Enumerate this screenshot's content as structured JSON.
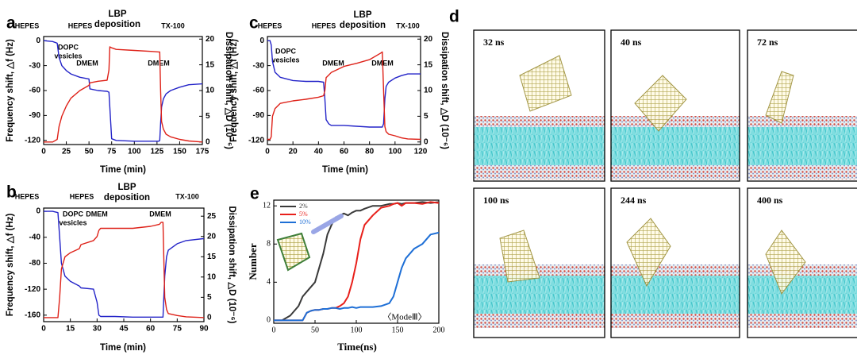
{
  "chart_data": [
    {
      "type": "line",
      "panel_label": "a",
      "xlabel": "Time (min)",
      "ylabel": "Frequency shift, △f (Hz)",
      "y2label": "Dissipation shift, △D (10⁻⁶)",
      "xlim": [
        0,
        175
      ],
      "xticks": [
        0,
        25,
        50,
        75,
        100,
        125,
        150,
        175
      ],
      "ylim": [
        -125,
        5
      ],
      "yticks": [
        0,
        -30,
        -60,
        -90,
        -120
      ],
      "y2lim": [
        -0.5,
        20.5
      ],
      "y2ticks": [
        0,
        5,
        10,
        15,
        20
      ],
      "annotations": [
        "HEPES",
        "HEPES",
        "LBP",
        "deposition",
        "TX-100",
        "DOPC",
        "vesicles",
        "DMEM",
        "DMEM"
      ],
      "x": [
        0,
        10,
        15,
        17,
        20,
        25,
        30,
        40,
        50,
        51,
        60,
        70,
        72,
        73,
        75,
        80,
        100,
        120,
        127,
        128,
        129,
        130,
        132,
        135,
        140,
        150,
        160,
        175
      ],
      "series": [
        {
          "color": "#2323c8",
          "values": [
            0,
            -1,
            -3,
            -20,
            -30,
            -36,
            -40,
            -44,
            -46,
            -58,
            -60,
            -61,
            -62,
            -80,
            -118,
            -120,
            -121,
            -121,
            -121,
            -120,
            -100,
            -80,
            -70,
            -64,
            -60,
            -56,
            -53,
            -52
          ]
        },
        {
          "color": "#de2118",
          "axis": "y2",
          "values": [
            0,
            0,
            0.5,
            3,
            5,
            7,
            8.5,
            10,
            11,
            11.5,
            11.8,
            12,
            14,
            18.5,
            18.3,
            18,
            17.8,
            17.6,
            17.5,
            17.5,
            10,
            4,
            2.5,
            1.5,
            1,
            0.5,
            0.2,
            0
          ]
        }
      ]
    },
    {
      "type": "line",
      "panel_label": "b",
      "xlabel": "Time (min)",
      "ylabel": "Frequency shift, △f (Hz)",
      "y2label": "Dissipation shift, △D (10⁻⁶)",
      "xlim": [
        0,
        90
      ],
      "xticks": [
        0,
        15,
        30,
        45,
        60,
        75,
        90
      ],
      "ylim": [
        -170,
        5
      ],
      "yticks": [
        -160,
        -120,
        -80,
        -40,
        0
      ],
      "y2lim": [
        -1,
        27
      ],
      "y2ticks": [
        0,
        5,
        10,
        15,
        20,
        25
      ],
      "annotations": [
        "HEPES",
        "HEPES",
        "LBP",
        "deposition",
        "TX-100",
        "DOPC",
        "vesicles",
        "DMEM",
        "DMEM"
      ],
      "x": [
        0,
        5,
        8,
        9,
        10,
        12,
        15,
        20,
        21,
        28,
        30,
        31,
        32,
        40,
        50,
        60,
        65,
        66,
        67,
        68,
        69,
        70,
        75,
        80,
        90
      ],
      "series": [
        {
          "color": "#2323c8",
          "values": [
            0,
            0,
            -2,
            -40,
            -80,
            -100,
            -108,
            -115,
            -118,
            -120,
            -140,
            -160,
            -162,
            -162,
            -163,
            -163,
            -163,
            -163,
            -163,
            -100,
            -70,
            -60,
            -50,
            -45,
            -42
          ]
        },
        {
          "color": "#de2118",
          "axis": "y2",
          "values": [
            0,
            0,
            0,
            5,
            12,
            15,
            16,
            17,
            18,
            19,
            20,
            21.5,
            22,
            22,
            22,
            22.5,
            23,
            23.5,
            23.5,
            5,
            2,
            1,
            0.5,
            0.2,
            0
          ]
        }
      ]
    },
    {
      "type": "line",
      "panel_label": "c",
      "xlabel": "Time (min)",
      "ylabel": "Frequency shift, △f (Hz)",
      "y2label": "Dissipation shift, △D (10⁻⁶)",
      "xlim": [
        0,
        120
      ],
      "xticks": [
        0,
        20,
        40,
        60,
        80,
        100,
        120
      ],
      "ylim": [
        -125,
        5
      ],
      "yticks": [
        0,
        -30,
        -60,
        -90,
        -120
      ],
      "y2lim": [
        -0.5,
        20.5
      ],
      "y2ticks": [
        0,
        5,
        10,
        15,
        20
      ],
      "annotations": [
        "HEPES",
        "HEPES",
        "LBP",
        "deposition",
        "TX-100",
        "DOPC",
        "vesicles",
        "DMEM",
        "DMEM"
      ],
      "x": [
        0,
        2,
        3,
        4,
        6,
        10,
        20,
        30,
        40,
        44,
        45,
        46,
        48,
        50,
        60,
        70,
        80,
        89,
        90,
        91,
        92,
        93,
        95,
        100,
        105,
        110,
        120
      ],
      "series": [
        {
          "color": "#2323c8",
          "values": [
            0,
            0,
            -5,
            -25,
            -38,
            -44,
            -48,
            -49,
            -49,
            -50,
            -70,
            -95,
            -100,
            -102,
            -102,
            -103,
            -104,
            -104,
            -104,
            -100,
            -70,
            -55,
            -50,
            -45,
            -42,
            -40,
            -40
          ]
        },
        {
          "color": "#de2118",
          "axis": "y2",
          "values": [
            0.5,
            0.5,
            1,
            5,
            6.5,
            7.5,
            8,
            8.3,
            8.7,
            9,
            10,
            12.5,
            13,
            13.5,
            14.7,
            15.3,
            16,
            17.3,
            17.5,
            10,
            3,
            2,
            1.5,
            1.2,
            0.8,
            0.6,
            0.5
          ]
        }
      ]
    },
    {
      "type": "line",
      "panel_label": "e",
      "xlabel": "Time(ns)",
      "ylabel": "Number",
      "xlim": [
        0,
        200
      ],
      "xticks": [
        0,
        50,
        100,
        150,
        200
      ],
      "ylim": [
        -0.3,
        12.6
      ],
      "yticks": [
        0,
        4,
        8,
        12
      ],
      "annotations": [
        "〈ModeⅢ〉"
      ],
      "x": [
        0,
        10,
        20,
        30,
        35,
        40,
        45,
        50,
        55,
        60,
        65,
        70,
        75,
        80,
        85,
        90,
        95,
        100,
        105,
        110,
        120,
        130,
        140,
        145,
        150,
        155,
        160,
        170,
        180,
        190,
        200
      ],
      "series": [
        {
          "name": "2%",
          "color": "#3a3a3a",
          "values": [
            0,
            0,
            0.5,
            1.5,
            2.5,
            3,
            3.5,
            4,
            5.5,
            7,
            9,
            10,
            10.8,
            11,
            11.2,
            11,
            11.3,
            11.5,
            11.5,
            11.7,
            12,
            12,
            12.2,
            12.2,
            12.3,
            12.2,
            12.3,
            12.3,
            12.4,
            12.3,
            12.4
          ]
        },
        {
          "name": "5%",
          "color": "#e8201b",
          "values": [
            0,
            0,
            0,
            0,
            0,
            0.8,
            1,
            1.1,
            1.1,
            1.2,
            1.2,
            1.3,
            1.3,
            1.5,
            1.8,
            2.5,
            4,
            6,
            8.5,
            10,
            11,
            11.8,
            12,
            12.2,
            12.3,
            12,
            12.3,
            12.3,
            12.2,
            12.4,
            12.3
          ]
        },
        {
          "name": "10%",
          "color": "#1e6fd6",
          "values": [
            0,
            0,
            0,
            0,
            0,
            0.8,
            1,
            1.1,
            1.1,
            1.2,
            1.2,
            1.3,
            1.3,
            1.2,
            1.3,
            1.3,
            1.4,
            1.3,
            1.4,
            1.4,
            1.4,
            1.5,
            1.8,
            2.5,
            4,
            5.5,
            6.5,
            7.5,
            8,
            9,
            9.2
          ]
        }
      ]
    }
  ],
  "panel_d": {
    "label": "d",
    "frames": [
      "32 ns",
      "40 ns",
      "72 ns",
      "100 ns",
      "244 ns",
      "400 ns"
    ]
  }
}
